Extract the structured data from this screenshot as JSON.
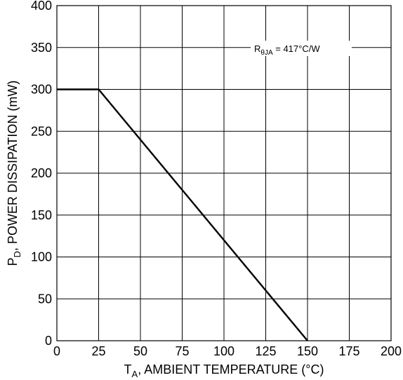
{
  "chart_data": {
    "type": "line",
    "x": [
      0,
      25,
      150
    ],
    "series": [
      {
        "values": [
          300,
          300,
          0
        ]
      }
    ],
    "xlabel": {
      "main": "T",
      "sub": "A",
      "rest": ", AMBIENT TEMPERATURE (°C)"
    },
    "ylabel": {
      "main": "P",
      "sub": "D",
      "rest": ", POWER DISSIPATION (mW)"
    },
    "xlim": [
      0,
      200
    ],
    "ylim": [
      0,
      400
    ],
    "x_ticks": [
      "0",
      "25",
      "50",
      "75",
      "100",
      "125",
      "150",
      "175",
      "200"
    ],
    "y_ticks": [
      "0",
      "50",
      "100",
      "150",
      "200",
      "250",
      "300",
      "350",
      "400"
    ],
    "grid": true,
    "annotation": {
      "main": "R",
      "sub": "θJA",
      "rest": " = 417°C/W"
    }
  }
}
